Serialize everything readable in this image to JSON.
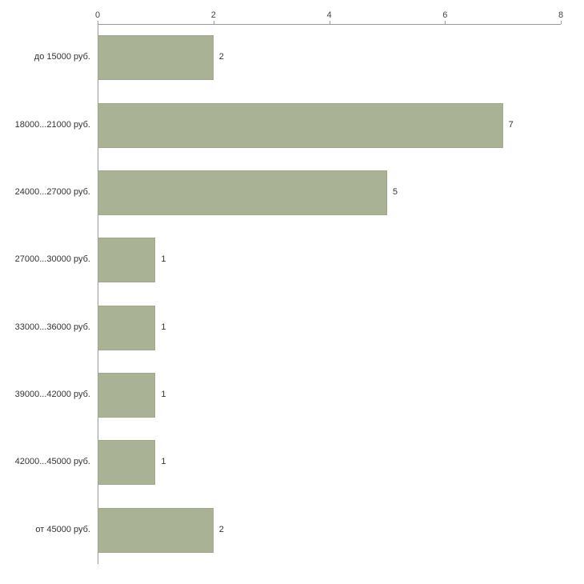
{
  "chart_data": {
    "type": "bar",
    "orientation": "horizontal",
    "title": "",
    "xlabel": "",
    "ylabel": "",
    "categories": [
      "до 15000 руб.",
      "18000...21000 руб.",
      "24000...27000 руб.",
      "27000...30000 руб.",
      "33000...36000 руб.",
      "39000...42000 руб.",
      "42000...45000 руб.",
      "от 45000 руб."
    ],
    "values": [
      2,
      7,
      5,
      1,
      1,
      1,
      1,
      2
    ],
    "value_labels": [
      "2",
      "7",
      "5",
      "1",
      "1",
      "1",
      "1",
      "2"
    ],
    "xlim": [
      0,
      8
    ],
    "xticks": [
      0,
      2,
      4,
      6,
      8
    ],
    "xtick_labels": [
      "0",
      "2",
      "4",
      "6",
      "8"
    ],
    "legend": null,
    "grid": false,
    "axis_position": "top-left",
    "bar_color": "#a9b294",
    "bar_border_color": "#9ea989",
    "axis_color": "#9a9a9a",
    "text_color": "#333333"
  }
}
